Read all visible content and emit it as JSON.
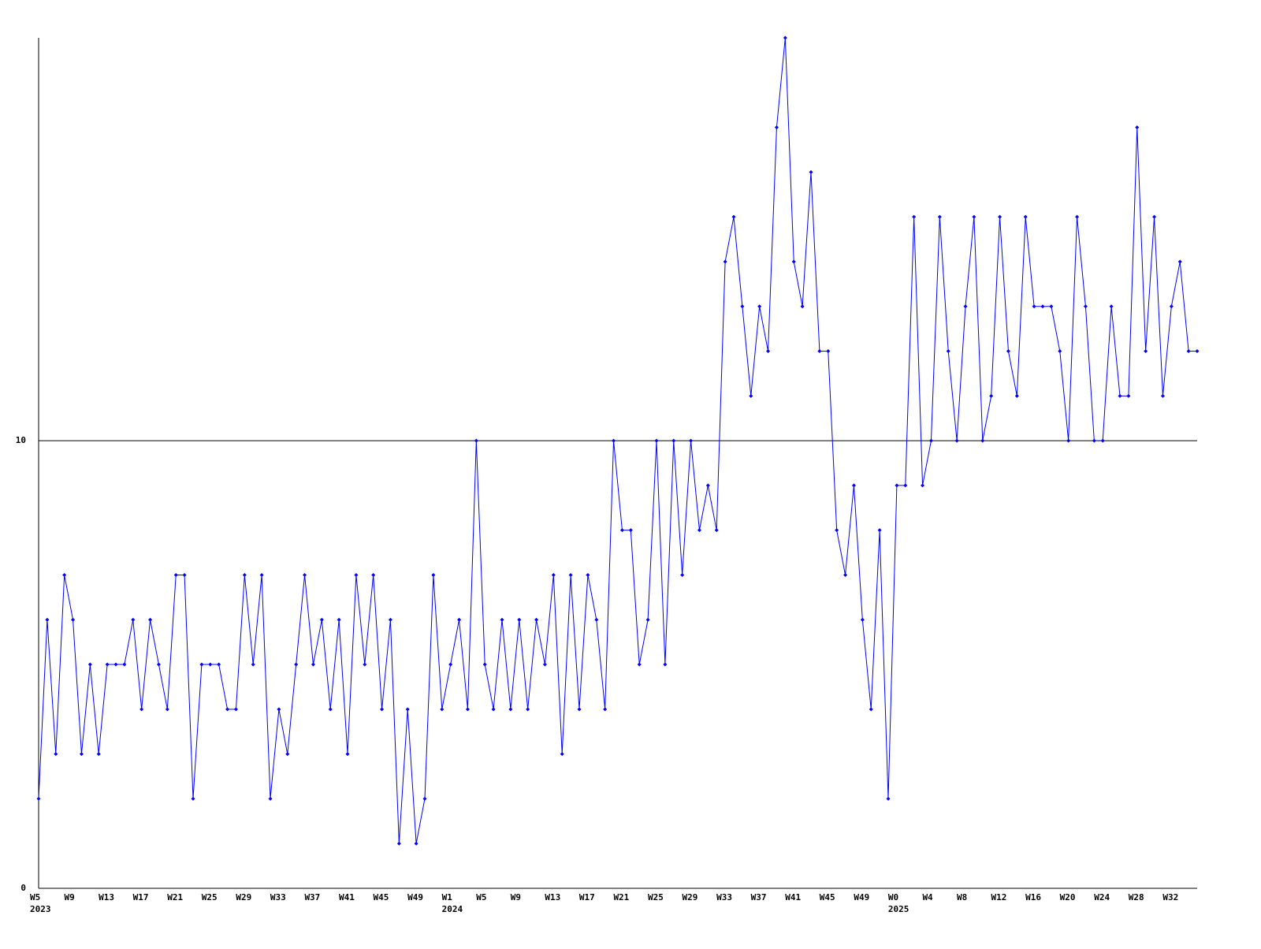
{
  "chart_data": {
    "type": "line",
    "categories": [
      "W5",
      null,
      null,
      null,
      "W9",
      null,
      null,
      null,
      "W13",
      null,
      null,
      null,
      "W17",
      null,
      null,
      null,
      "W21",
      null,
      null,
      null,
      "W25",
      null,
      null,
      null,
      "W29",
      null,
      null,
      null,
      "W33",
      null,
      null,
      null,
      "W37",
      null,
      null,
      null,
      "W41",
      null,
      null,
      null,
      "W45",
      null,
      null,
      null,
      "W49",
      null,
      null,
      null,
      "W1",
      null,
      null,
      null,
      "W5",
      null,
      null,
      null,
      "W9",
      null,
      null,
      null,
      "W13",
      null,
      null,
      null,
      "W17",
      null,
      null,
      null,
      "W21",
      null,
      null,
      null,
      "W25",
      null,
      null,
      null,
      "W29",
      null,
      null,
      null,
      "W33",
      null,
      null,
      null,
      "W37",
      null,
      null,
      null,
      "W41",
      null,
      null,
      null,
      "W45",
      null,
      null,
      null,
      "W49",
      null,
      null,
      null,
      "W0",
      null,
      null,
      null,
      "W4",
      null,
      null,
      null,
      "W8",
      null,
      null,
      null,
      "W12",
      null,
      null,
      null,
      "W16",
      null,
      null,
      null,
      "W20",
      null,
      null,
      null,
      "W24",
      null,
      null,
      null,
      "W28",
      null,
      null,
      null,
      "W32",
      null,
      null,
      null
    ],
    "years": [
      "2023",
      null,
      null,
      null,
      null,
      null,
      null,
      null,
      null,
      null,
      null,
      null,
      null,
      null,
      null,
      null,
      null,
      null,
      null,
      null,
      null,
      null,
      null,
      null,
      null,
      null,
      null,
      null,
      null,
      null,
      null,
      null,
      null,
      null,
      null,
      null,
      null,
      null,
      null,
      null,
      null,
      null,
      null,
      null,
      null,
      null,
      null,
      null,
      "2024",
      null,
      null,
      null,
      null,
      null,
      null,
      null,
      null,
      null,
      null,
      null,
      null,
      null,
      null,
      null,
      null,
      null,
      null,
      null,
      null,
      null,
      null,
      null,
      null,
      null,
      null,
      null,
      null,
      null,
      null,
      null,
      null,
      null,
      null,
      null,
      null,
      null,
      null,
      null,
      null,
      null,
      null,
      null,
      null,
      null,
      null,
      null,
      null,
      null,
      null,
      null,
      "2025",
      null,
      null,
      null,
      null,
      null,
      null,
      null,
      null,
      null,
      null,
      null,
      null,
      null,
      null,
      null,
      null,
      null,
      null,
      null,
      null,
      null,
      null,
      null,
      null,
      null,
      null,
      null,
      null,
      null,
      null,
      null,
      null,
      null,
      null,
      null
    ],
    "series": [
      {
        "color": "#0000ff",
        "values": [
          2,
          6,
          3,
          7,
          6,
          3,
          5,
          3,
          5,
          5,
          5,
          6,
          4,
          6,
          5,
          4,
          7,
          7,
          2,
          5,
          5,
          5,
          4,
          4,
          7,
          5,
          7,
          2,
          4,
          3,
          5,
          7,
          5,
          6,
          4,
          6,
          3,
          7,
          5,
          7,
          4,
          6,
          1,
          4,
          1,
          2,
          7,
          4,
          5,
          6,
          4,
          10,
          5,
          4,
          6,
          4,
          6,
          4,
          6,
          5,
          7,
          3,
          7,
          4,
          7,
          6,
          4,
          10,
          8,
          8,
          5,
          6,
          10,
          5,
          10,
          7,
          10,
          8,
          9,
          8,
          14,
          15,
          13,
          11,
          13,
          12,
          17,
          19,
          14,
          13,
          16,
          12,
          12,
          8,
          7,
          9,
          6,
          4,
          8,
          2,
          9,
          9,
          15,
          9,
          10,
          15,
          12,
          10,
          13,
          15,
          10,
          11,
          15,
          12,
          11,
          15,
          13,
          13,
          13,
          12,
          10,
          15,
          13,
          10,
          10,
          13,
          11,
          11,
          17,
          12,
          15,
          11,
          13,
          14,
          12,
          12
        ]
      }
    ],
    "ylim": [
      0,
      19
    ],
    "yticks": [
      0,
      10
    ],
    "grid": true
  }
}
